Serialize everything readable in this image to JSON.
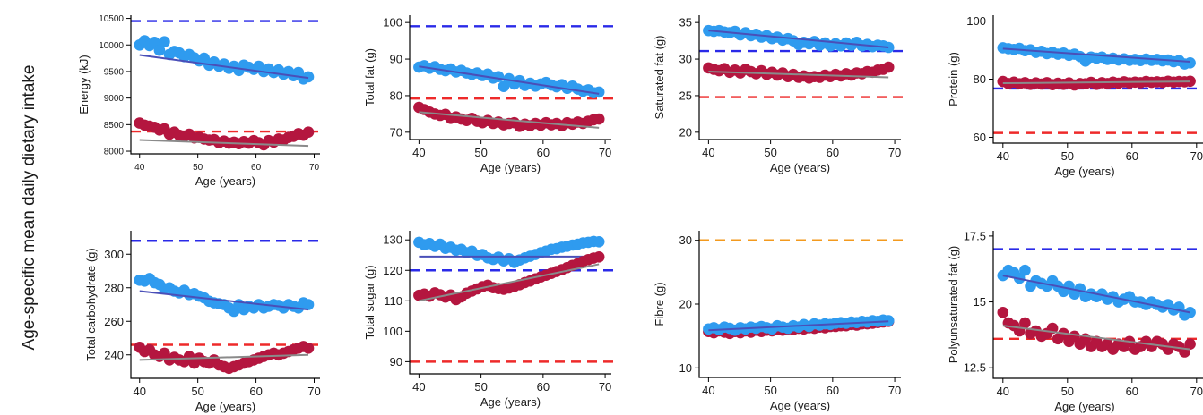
{
  "figure": {
    "title": "Age-specific mean daily dietary intake",
    "xlabel": "Age (years)"
  },
  "colors": {
    "series_blue": "#2f9bef",
    "series_red": "#b4163f",
    "ref_blue": "#2a2ae8",
    "ref_red": "#ee2a2a",
    "ref_orange": "#f39a1e",
    "trend_blue": "#4a4fb8",
    "trend_red": "#8a8a8a"
  },
  "chart_data": [
    {
      "id": "energy",
      "type": "scatter",
      "ylabel": "Energy (kJ)",
      "ylim": [
        7950,
        10560
      ],
      "yticks": [
        8000,
        8500,
        9000,
        9500,
        10000,
        10500
      ],
      "xlim": [
        38.5,
        71
      ],
      "xticks": [
        40,
        50,
        60,
        70
      ],
      "small_ticks": true,
      "reference_lines": [
        {
          "y": 10450,
          "color": "ref_blue"
        },
        {
          "y": 8370,
          "color": "ref_red"
        }
      ],
      "series": [
        {
          "color": "series_blue",
          "trend": [
            9810,
            9380
          ],
          "trend_color": "trend_blue",
          "y": [
            10000,
            10080,
            9990,
            10050,
            9900,
            10060,
            9820,
            9880,
            9850,
            9780,
            9820,
            9760,
            9700,
            9750,
            9620,
            9680,
            9600,
            9640,
            9560,
            9600,
            9520,
            9620,
            9580,
            9540,
            9600,
            9500,
            9550,
            9480,
            9530,
            9450,
            9500,
            9420,
            9480,
            9360,
            9400
          ]
        },
        {
          "color": "series_red",
          "trend": [
            8210,
            8100
          ],
          "trend_color": "trend_red",
          "y": [
            8530,
            8490,
            8470,
            8450,
            8400,
            8420,
            8320,
            8360,
            8300,
            8280,
            8320,
            8250,
            8260,
            8230,
            8210,
            8220,
            8160,
            8190,
            8150,
            8170,
            8140,
            8180,
            8150,
            8200,
            8160,
            8120,
            8200,
            8170,
            8230,
            8210,
            8260,
            8280,
            8330,
            8300,
            8360
          ]
        }
      ]
    },
    {
      "id": "total-fat",
      "type": "scatter",
      "ylabel": "Total fat (g)",
      "ylim": [
        68,
        102
      ],
      "yticks": [
        70,
        80,
        90,
        100
      ],
      "xlim": [
        38.5,
        71
      ],
      "xticks": [
        40,
        50,
        60,
        70
      ],
      "reference_lines": [
        {
          "y": 99,
          "color": "ref_blue"
        },
        {
          "y": 79.2,
          "color": "ref_red"
        }
      ],
      "series": [
        {
          "color": "series_blue",
          "trend": [
            88,
            80.5
          ],
          "trend_color": "trend_blue",
          "y": [
            87.8,
            88.2,
            87.5,
            87.9,
            87.2,
            86.8,
            87.3,
            86.5,
            86.9,
            86.2,
            85.8,
            86.2,
            85.5,
            85.9,
            84.8,
            85.2,
            82.5,
            84.6,
            83.2,
            84.1,
            82.8,
            83.4,
            82.6,
            83.2,
            83.6,
            82.9,
            82.4,
            83.0,
            82.0,
            82.6,
            81.8,
            81.2,
            81.6,
            80.8,
            81.0
          ]
        },
        {
          "color": "series_red",
          "trend": [
            75.5,
            71.2
          ],
          "trend_color": "trend_red",
          "y": [
            76.8,
            76.2,
            75.5,
            75.0,
            74.6,
            74.9,
            73.8,
            74.2,
            73.6,
            73.2,
            73.8,
            73.0,
            72.6,
            73.2,
            72.4,
            72.8,
            72.0,
            72.4,
            72.6,
            71.6,
            72.2,
            71.8,
            72.4,
            71.9,
            72.6,
            72.0,
            72.4,
            71.8,
            72.6,
            72.2,
            72.8,
            72.4,
            73.0,
            73.4,
            73.6
          ]
        }
      ]
    },
    {
      "id": "saturated-fat",
      "type": "scatter",
      "ylabel": "Saturated fat (g)",
      "ylim": [
        19,
        36
      ],
      "yticks": [
        20,
        25,
        30,
        35
      ],
      "xlim": [
        38.5,
        71
      ],
      "xticks": [
        40,
        50,
        60,
        70
      ],
      "reference_lines": [
        {
          "y": 31.1,
          "color": "ref_blue"
        },
        {
          "y": 24.8,
          "color": "ref_red"
        }
      ],
      "series": [
        {
          "color": "series_blue",
          "trend": [
            33.9,
            31.6
          ],
          "trend_color": "trend_blue",
          "y": [
            33.9,
            33.8,
            33.9,
            33.7,
            33.6,
            33.8,
            33.3,
            33.6,
            33.2,
            33.4,
            33.0,
            33.2,
            32.8,
            33.0,
            32.6,
            32.8,
            32.5,
            32.0,
            32.3,
            32.1,
            32.4,
            31.9,
            32.2,
            31.8,
            32.1,
            31.8,
            32.2,
            31.9,
            32.3,
            31.8,
            32.0,
            31.7,
            31.9,
            31.8,
            31.6
          ]
        },
        {
          "color": "series_red",
          "trend": [
            28.3,
            27.5
          ],
          "trend_color": "trend_red",
          "y": [
            28.8,
            28.6,
            28.4,
            28.7,
            28.2,
            28.5,
            28.1,
            28.6,
            28.3,
            28.0,
            28.4,
            27.9,
            28.2,
            27.8,
            28.1,
            27.6,
            27.9,
            27.5,
            27.7,
            27.4,
            27.6,
            27.5,
            27.8,
            27.6,
            27.9,
            27.7,
            28.0,
            27.8,
            28.1,
            28.0,
            28.3,
            28.2,
            28.5,
            28.6,
            28.9
          ]
        }
      ]
    },
    {
      "id": "protein",
      "type": "scatter",
      "ylabel": "Protein (g)",
      "ylim": [
        58,
        102
      ],
      "yticks": [
        60,
        80,
        100
      ],
      "xlim": [
        38.5,
        71
      ],
      "xticks": [
        40,
        50,
        60,
        70
      ],
      "reference_lines": [
        {
          "y": 76.8,
          "color": "ref_blue"
        },
        {
          "y": 61.5,
          "color": "ref_red"
        }
      ],
      "series": [
        {
          "color": "series_blue",
          "trend": [
            90.5,
            86
          ],
          "trend_color": "trend_blue",
          "y": [
            90.8,
            90.5,
            90.2,
            90.6,
            89.8,
            90.1,
            89.2,
            89.6,
            88.8,
            89.2,
            88.6,
            89.0,
            88.2,
            88.6,
            87.8,
            86.2,
            87.6,
            87.2,
            87.6,
            86.8,
            87.2,
            86.6,
            87.0,
            86.5,
            86.8,
            86.4,
            86.9,
            86.5,
            86.8,
            86.3,
            86.6,
            86.0,
            86.4,
            85.2,
            85.6
          ]
        },
        {
          "color": "series_red",
          "trend": [
            78.6,
            79.2
          ],
          "trend_color": "trend_red",
          "y": [
            79.2,
            78.5,
            79.0,
            78.4,
            78.8,
            78.2,
            78.7,
            78.3,
            78.8,
            78.1,
            78.6,
            78.2,
            78.7,
            78.0,
            78.5,
            78.4,
            78.9,
            78.2,
            78.8,
            78.5,
            79.0,
            78.6,
            79.1,
            78.7,
            79.0,
            78.8,
            79.2,
            78.9,
            79.1,
            78.9,
            79.3,
            79.0,
            79.2,
            79.1,
            79.3
          ]
        }
      ]
    },
    {
      "id": "total-carbohydrate",
      "type": "scatter",
      "ylabel": "Total carbohydrate (g)",
      "ylim": [
        226,
        314
      ],
      "yticks": [
        240,
        260,
        280,
        300
      ],
      "xlim": [
        38.5,
        71
      ],
      "xticks": [
        40,
        50,
        60,
        70
      ],
      "reference_lines": [
        {
          "y": 308,
          "color": "ref_blue"
        },
        {
          "y": 246,
          "color": "ref_red"
        }
      ],
      "series": [
        {
          "color": "series_blue",
          "trend": [
            278,
            267
          ],
          "trend_color": "trend_blue",
          "y": [
            284.5,
            284,
            285.5,
            283,
            282,
            279.5,
            280,
            278,
            277,
            278.5,
            276,
            276.5,
            275,
            274,
            272,
            271,
            270.5,
            270,
            268,
            266,
            270,
            267,
            269,
            268,
            270,
            268,
            269,
            270,
            269.5,
            268,
            270,
            269,
            268,
            271,
            270
          ]
        },
        {
          "color": "series_red",
          "trend": [
            237,
            240
          ],
          "trend_color": "trend_red",
          "y": [
            244.5,
            242,
            243,
            240,
            239,
            241,
            237,
            238.5,
            237,
            236,
            239,
            235,
            238,
            236,
            235,
            237,
            234,
            233,
            232,
            233,
            234,
            235,
            236,
            237,
            238,
            239,
            240,
            241,
            240,
            241,
            242,
            243,
            244,
            245,
            244
          ]
        }
      ]
    },
    {
      "id": "total-sugar",
      "type": "scatter",
      "ylabel": "Total sugar (g)",
      "ylim": [
        86,
        133
      ],
      "yticks": [
        90,
        100,
        110,
        120,
        130
      ],
      "xlim": [
        38.5,
        71
      ],
      "xticks": [
        40,
        50,
        60,
        70
      ],
      "reference_lines": [
        {
          "y": 120,
          "color": "ref_blue"
        },
        {
          "y": 90,
          "color": "ref_red"
        }
      ],
      "series": [
        {
          "color": "series_blue",
          "trend": [
            124.5,
            124.5
          ],
          "trend_color": "trend_blue",
          "y": [
            129.2,
            128.4,
            128.8,
            127.9,
            128.6,
            127.2,
            127.6,
            126.6,
            126.9,
            125.8,
            126.3,
            124.9,
            125.2,
            124.1,
            123.6,
            124.3,
            123.1,
            123.8,
            122.6,
            123.4,
            124.1,
            124.6,
            125.2,
            125.8,
            126.3,
            126.9,
            127.1,
            127.6,
            127.9,
            128.3,
            128.6,
            129.0,
            129.2,
            129.5,
            129.4
          ]
        },
        {
          "color": "series_red",
          "trend": [
            110,
            122
          ],
          "trend_color": "trend_red",
          "y": [
            111.8,
            112.2,
            111.5,
            112.6,
            112.0,
            111.2,
            111.9,
            110.4,
            111.3,
            112.5,
            113.2,
            113.9,
            114.6,
            115.1,
            114.3,
            114.0,
            113.8,
            114.2,
            114.7,
            115.3,
            116.0,
            116.5,
            117.2,
            117.8,
            118.4,
            119.0,
            119.6,
            120.2,
            120.9,
            121.6,
            122.2,
            122.9,
            123.5,
            124.0,
            124.4
          ]
        }
      ]
    },
    {
      "id": "fibre",
      "type": "scatter",
      "ylabel": "Fibre (g)",
      "ylim": [
        8.5,
        31.5
      ],
      "yticks": [
        10,
        20,
        30
      ],
      "xlim": [
        38.5,
        71
      ],
      "xticks": [
        40,
        50,
        60,
        70
      ],
      "reference_lines": [
        {
          "y": 30,
          "color": "ref_orange"
        }
      ],
      "series": [
        {
          "color": "series_red",
          "trend": [
            15.6,
            17.2
          ],
          "trend_color": "trend_red",
          "y": [
            15.7,
            15.5,
            15.8,
            15.6,
            15.4,
            15.7,
            15.5,
            15.8,
            15.6,
            15.9,
            15.7,
            15.9,
            15.8,
            16.0,
            15.9,
            16.1,
            16.0,
            16.2,
            16.1,
            16.3,
            16.2,
            16.4,
            16.3,
            16.5,
            16.5,
            16.6,
            16.6,
            16.8,
            16.7,
            16.9,
            16.9,
            17.0,
            17.1,
            17.2,
            17.3
          ]
        },
        {
          "color": "series_blue",
          "trend": [
            15.9,
            17.3
          ],
          "trend_color": "trend_blue",
          "y": [
            16.1,
            16.3,
            16.0,
            16.4,
            16.2,
            15.9,
            16.3,
            16.1,
            16.4,
            16.2,
            16.5,
            16.3,
            16.1,
            16.6,
            16.4,
            16.2,
            16.6,
            16.4,
            16.8,
            16.5,
            16.9,
            16.7,
            16.9,
            16.8,
            17.0,
            17.1,
            17.0,
            17.2,
            17.1,
            17.3,
            17.2,
            17.4,
            17.3,
            17.5,
            17.4
          ]
        }
      ]
    },
    {
      "id": "polyunsaturated-fat",
      "type": "scatter",
      "ylabel": "Polyunsaturated fat (g)",
      "ylim": [
        12.1,
        17.7
      ],
      "yticks": [
        12.5,
        15,
        17.5
      ],
      "ytick_labels": [
        "12.5",
        "15",
        "17.5"
      ],
      "xlim": [
        38.5,
        71
      ],
      "xticks": [
        40,
        50,
        60,
        70
      ],
      "reference_lines": [
        {
          "y": 17.0,
          "color": "ref_blue"
        },
        {
          "y": 13.6,
          "color": "ref_red"
        }
      ],
      "series": [
        {
          "color": "series_blue",
          "trend": [
            16.0,
            14.6
          ],
          "trend_color": "trend_blue",
          "y": [
            16.0,
            16.2,
            16.1,
            15.9,
            16.2,
            15.6,
            15.8,
            15.7,
            15.6,
            15.8,
            15.6,
            15.4,
            15.6,
            15.3,
            15.5,
            15.2,
            15.3,
            15.2,
            15.3,
            15.1,
            15.2,
            15.0,
            15.1,
            15.2,
            15.0,
            15.0,
            14.9,
            15.0,
            14.9,
            14.8,
            14.9,
            14.7,
            14.8,
            14.5,
            14.6
          ]
        },
        {
          "color": "series_red",
          "trend": [
            14.1,
            13.2
          ],
          "trend_color": "trend_red",
          "y": [
            14.6,
            14.2,
            14.1,
            13.9,
            14.2,
            13.8,
            13.9,
            13.7,
            13.8,
            14.0,
            13.6,
            13.8,
            13.5,
            13.7,
            13.4,
            13.6,
            13.3,
            13.5,
            13.3,
            13.4,
            13.2,
            13.4,
            13.3,
            13.5,
            13.2,
            13.3,
            13.5,
            13.3,
            13.5,
            13.4,
            13.2,
            13.4,
            13.3,
            13.1,
            13.4
          ]
        }
      ]
    }
  ]
}
